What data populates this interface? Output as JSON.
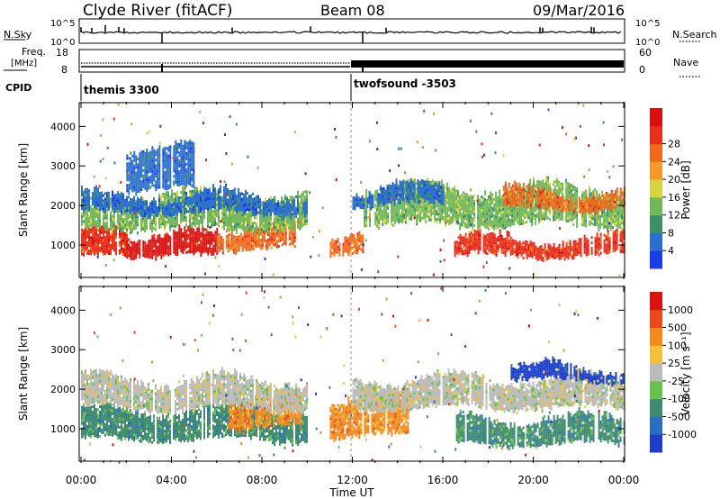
{
  "header": {
    "title": "Clyde River (fitACF)",
    "beam": "Beam 08",
    "date": "09/Mar/2016"
  },
  "panels": {
    "nsky": {
      "left_label": "N.Sky",
      "right_label": "N.Search",
      "left_ticks": [
        "10^5",
        "10^0"
      ],
      "right_ticks": [
        "10^5",
        "10^0"
      ]
    },
    "freq": {
      "left_label": "Freq.",
      "left_unit": "[MHz]",
      "right_label": "Nave",
      "left_ticks": [
        "18",
        "8"
      ],
      "right_ticks": [
        "60",
        "0"
      ]
    },
    "cpid": {
      "label": "CPID",
      "programs": [
        {
          "name": "themis 3300",
          "start_hour": 0
        },
        {
          "name": "twofsound -3503",
          "start_hour": 12
        }
      ]
    }
  },
  "chart_data": [
    {
      "type": "heatmap",
      "name": "power",
      "ylabel": "Slant Range [km]",
      "yticks": [
        1000,
        2000,
        3000,
        4000
      ],
      "ylim": [
        180,
        4600
      ],
      "xlim": [
        0,
        24
      ],
      "colorbar": {
        "label": "Power [dB]",
        "ticks": [
          "4",
          "8",
          "12",
          "16",
          "20",
          "24",
          "28"
        ],
        "colors": [
          "#1a3de6",
          "#2b6fcf",
          "#3d8f6a",
          "#72b85a",
          "#d8d440",
          "#f39a2a",
          "#ef6b1b",
          "#e8301c",
          "#d80f0f"
        ]
      },
      "bands": [
        {
          "t0": 0.0,
          "t1": 2.0,
          "r0": 700,
          "r1": 1400,
          "cat": 7
        },
        {
          "t0": 2.0,
          "t1": 6.0,
          "r0": 700,
          "r1": 1300,
          "cat": 8
        },
        {
          "t0": 6.0,
          "t1": 9.5,
          "r0": 900,
          "r1": 1500,
          "cat": 6
        },
        {
          "t0": 11.0,
          "t1": 12.5,
          "r0": 800,
          "r1": 1300,
          "cat": 6
        },
        {
          "t0": 16.5,
          "t1": 24.0,
          "r0": 700,
          "r1": 1200,
          "cat": 7
        },
        {
          "t0": 0.0,
          "t1": 10.0,
          "r0": 1400,
          "r1": 2300,
          "cat": 3
        },
        {
          "t0": 12.5,
          "t1": 24.0,
          "r0": 1500,
          "r1": 2500,
          "cat": 3
        },
        {
          "t0": 18.5,
          "t1": 24.0,
          "r0": 1900,
          "r1": 2400,
          "cat": 6
        },
        {
          "t0": 0.0,
          "t1": 10.0,
          "r0": 1800,
          "r1": 2300,
          "cat": 1
        },
        {
          "t0": 2.0,
          "t1": 5.0,
          "r0": 2400,
          "r1": 3500,
          "cat": 1
        },
        {
          "t0": 12.0,
          "t1": 16.0,
          "r0": 2000,
          "r1": 2500,
          "cat": 1
        }
      ]
    },
    {
      "type": "heatmap",
      "name": "velocity",
      "ylabel": "Slant Range [km]",
      "xlabel": "Time UT",
      "yticks": [
        1000,
        2000,
        3000,
        4000
      ],
      "ylim": [
        180,
        4600
      ],
      "xlim": [
        0,
        24
      ],
      "xticks": [
        "00:00",
        "04:00",
        "08:00",
        "12:00",
        "16:00",
        "20:00",
        "00:00"
      ],
      "colorbar": {
        "label": "Velocity [m s⁻¹]",
        "ticks": [
          "1000",
          "500",
          "100",
          "25",
          "-25",
          "-100",
          "-500",
          "-1000"
        ],
        "colors": [
          "#1c3ecb",
          "#2a6fc1",
          "#3f8a6f",
          "#67c14c",
          "#bbbbbb",
          "#f3c03a",
          "#f08c1e",
          "#ea4a18",
          "#d9130d"
        ]
      },
      "bands": [
        {
          "t0": 0.0,
          "t1": 10.0,
          "r0": 700,
          "r1": 1500,
          "cat": 2
        },
        {
          "t0": 16.5,
          "t1": 24.0,
          "r0": 600,
          "r1": 1300,
          "cat": 2
        },
        {
          "t0": 6.5,
          "t1": 9.7,
          "r0": 1000,
          "r1": 1800,
          "cat": 6
        },
        {
          "t0": 11.0,
          "t1": 14.5,
          "r0": 800,
          "r1": 1800,
          "cat": 6
        },
        {
          "t0": 0.0,
          "t1": 10.0,
          "r0": 1500,
          "r1": 2300,
          "cat": 4
        },
        {
          "t0": 12.0,
          "t1": 24.0,
          "r0": 1500,
          "r1": 2300,
          "cat": 4
        },
        {
          "t0": 19.0,
          "t1": 24.0,
          "r0": 2200,
          "r1": 2600,
          "cat": 0
        }
      ]
    }
  ]
}
